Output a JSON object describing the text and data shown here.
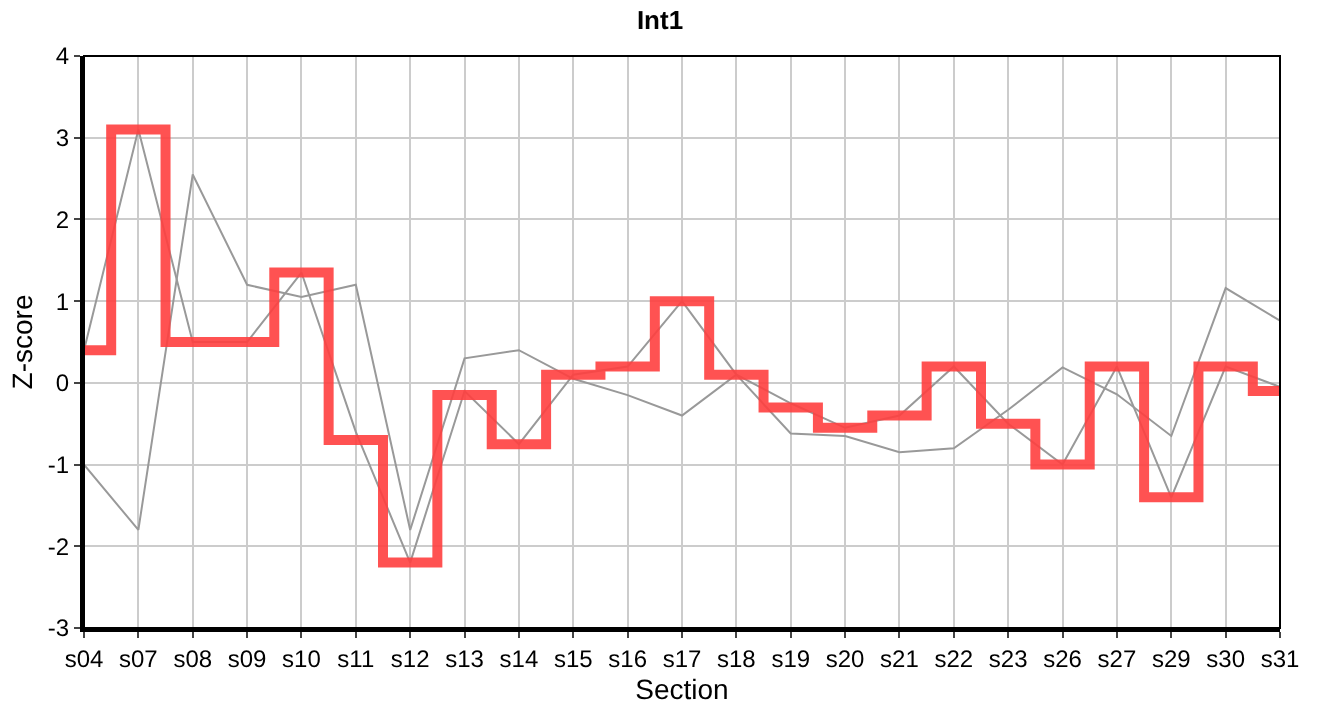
{
  "chart_data": {
    "type": "line",
    "title": "Int1",
    "xlabel": "Section",
    "ylabel": "Z-score",
    "categories": [
      "s04",
      "s07",
      "s08",
      "s09",
      "s10",
      "s11",
      "s12",
      "s13",
      "s14",
      "s15",
      "s16",
      "s17",
      "s18",
      "s19",
      "s20",
      "s21",
      "s22",
      "s23",
      "s26",
      "s27",
      "s29",
      "s30",
      "s31"
    ],
    "ylim": [
      -3,
      4
    ],
    "yticks": [
      -3,
      -2,
      -1,
      0,
      1,
      2,
      3,
      4
    ],
    "grid": true,
    "marker": "none",
    "series": [
      {
        "color": "#999999",
        "values": [
          0.4,
          3.1,
          0.5,
          0.5,
          1.35,
          -0.6,
          -2.2,
          -0.1,
          -0.75,
          0.1,
          0.2,
          1.0,
          0.1,
          -0.25,
          -0.55,
          -0.4,
          0.2,
          -0.5,
          -1.0,
          0.2,
          -1.4,
          0.2,
          -0.05
        ]
      },
      {
        "color": "#999999",
        "values": [
          -1.0,
          -1.8,
          2.55,
          1.2,
          1.05,
          1.2,
          -1.8,
          0.3,
          0.4,
          0.05,
          -0.15,
          -0.4,
          0.1,
          -0.62,
          -0.65,
          -0.85,
          -0.8,
          -0.33,
          0.19,
          -0.14,
          -0.65,
          1.16,
          0.76
        ]
      },
      {
        "type": "step",
        "color": "#ff4040",
        "values": [
          0.4,
          3.1,
          0.5,
          0.5,
          1.35,
          -0.7,
          -2.2,
          -0.15,
          -0.75,
          0.1,
          0.2,
          1.0,
          0.1,
          -0.3,
          -0.55,
          -0.4,
          0.2,
          -0.5,
          -1.0,
          0.2,
          -1.4,
          0.2,
          -0.1
        ]
      }
    ]
  }
}
